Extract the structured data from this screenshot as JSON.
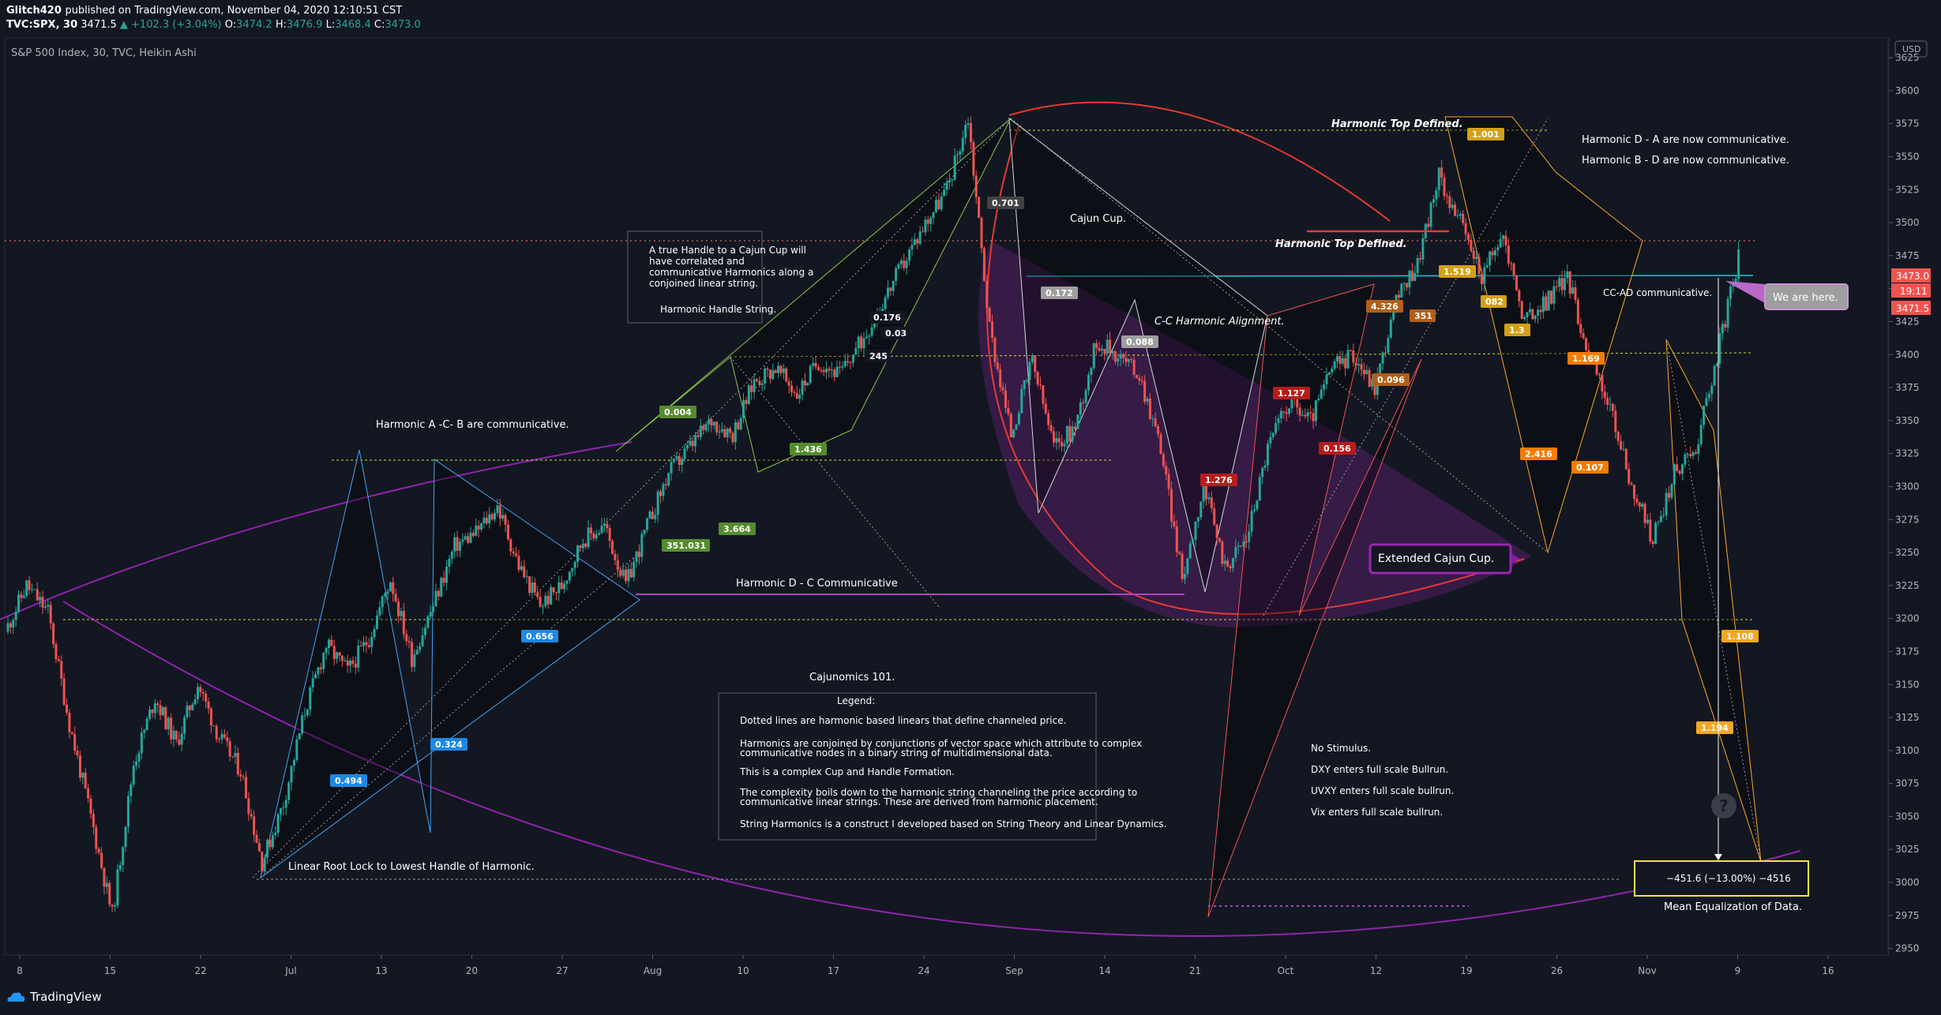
{
  "header": {
    "author": "Glitch420",
    "published": "published on TradingView.com, November 04, 2020 12:10:51 CST",
    "symbol": "TVC:SPX, 30",
    "last": "3471.5",
    "change": "▲ +102.3 (+3.04%)",
    "o_label": "O:",
    "o": "3474.2",
    "h_label": "H:",
    "h": "3476.9",
    "l_label": "L:",
    "l": "3468.4",
    "c_label": "C:",
    "c": "3473.0"
  },
  "chart_title": "S&P 500 Index, 30, TVC, Heikin Ashi",
  "currency": "USD",
  "price_tags": {
    "p1": "3473.0",
    "p2": "19:11",
    "p3": "3471.5"
  },
  "colors": {
    "bg": "#131722",
    "up": "#26a69a",
    "down": "#ef5350",
    "purple": "#9c27b0",
    "orange": "#f5a623",
    "blue": "#2962ff"
  },
  "annotations": {
    "handle_box": [
      "A true Handle to a Cajun Cup will",
      "have correlated and",
      "communicative Harmonics along a",
      "conjoined linear string."
    ],
    "handle_string": "Harmonic Handle String.",
    "harmonic_ac_b": "Harmonic A -C- B are communicative.",
    "harmonic_dc": "Harmonic D - C Communicative",
    "cajun_cup": "Cajun Cup.",
    "cc_alignment": "C-C Harmonic Alignment.",
    "top_defined_1": "Harmonic Top Defined.",
    "top_defined_2": "Harmonic Top Defined.",
    "da_comm": "Harmonic D - A are now communicative.",
    "bd_comm": "Harmonic B - D are now communicative.",
    "ccad": "CC-AD communicative.",
    "we_are_here": "We are here.",
    "extended_cup": "Extended Cajun Cup.",
    "linear_root": "Linear Root Lock to Lowest Handle of Harmonic.",
    "cajunomics": "Cajunomics 101.",
    "legend_title": "Legend:",
    "legend_lines": [
      "Dotted lines are harmonic based linears that define channeled price.",
      "Harmonics are conjoined by conjunctions of vector space which attribute to complex",
      "communicative nodes in a binary string of multidimensional data.",
      "This is a complex Cup and Handle Formation.",
      "The complexity boils down to the harmonic string channeling the price according to",
      "communicative linear strings. These are derived from harmonic placement.",
      "String Harmonics is a construct I developed based on String Theory and Linear Dynamics."
    ],
    "stimulus": [
      "No Stimulus.",
      "DXY enters full scale Bullrun.",
      "UVXY enters full scale bullrun.",
      "Vix enters full scale bullrun."
    ],
    "measure": "−451.6 (−13.00%) −4516",
    "mean_eq": "Mean Equalization of Data."
  },
  "badges": [
    "0.004",
    "1.436",
    "351.031",
    "3.664",
    "0.656",
    "0.324",
    "0.494",
    "0.701",
    "0.172",
    "0.176",
    "0.03",
    "245",
    "0.088",
    "1.127",
    "0.156",
    "1.276",
    "1.001",
    "1.519",
    "4.326",
    "0.096",
    "2.416",
    "0.107",
    "1.169",
    "1.108",
    "1.194",
    "1.3",
    "082",
    "351"
  ],
  "brand": "TradingView",
  "chart_data": {
    "type": "candlestick",
    "title": "S&P 500 Index, 30, TVC, Heikin Ashi",
    "x_ticks": [
      "8",
      "15",
      "22",
      "Jul",
      "13",
      "20",
      "27",
      "Aug",
      "10",
      "17",
      "24",
      "Sep",
      "14",
      "21",
      "Oct",
      "12",
      "19",
      "26",
      "Nov",
      "9",
      "16"
    ],
    "y_ticks": [
      2950,
      2975,
      3000,
      3025,
      3050,
      3075,
      3100,
      3125,
      3150,
      3175,
      3200,
      3225,
      3250,
      3275,
      3300,
      3325,
      3350,
      3375,
      3400,
      3425,
      3450,
      3475,
      3500,
      3525,
      3550,
      3575,
      3600,
      3625
    ],
    "ylim": [
      2945,
      3640
    ],
    "series": [
      {
        "name": "SPX close",
        "points": [
          [
            0,
            3190
          ],
          [
            1,
            3225
          ],
          [
            2,
            3205
          ],
          [
            3,
            3120
          ],
          [
            4,
            3050
          ],
          [
            5,
            2975
          ],
          [
            6,
            3090
          ],
          [
            7,
            3140
          ],
          [
            8,
            3105
          ],
          [
            9,
            3150
          ],
          [
            10,
            3110
          ],
          [
            11,
            3085
          ],
          [
            12,
            3015
          ],
          [
            13,
            3060
          ],
          [
            14,
            3130
          ],
          [
            15,
            3180
          ],
          [
            16,
            3160
          ],
          [
            17,
            3185
          ],
          [
            18,
            3230
          ],
          [
            19,
            3170
          ],
          [
            20,
            3210
          ],
          [
            21,
            3255
          ],
          [
            22,
            3265
          ],
          [
            23,
            3285
          ],
          [
            24,
            3240
          ],
          [
            25,
            3210
          ],
          [
            26,
            3225
          ],
          [
            27,
            3260
          ],
          [
            28,
            3270
          ],
          [
            29,
            3225
          ],
          [
            30,
            3270
          ],
          [
            31,
            3310
          ],
          [
            32,
            3330
          ],
          [
            33,
            3350
          ],
          [
            34,
            3340
          ],
          [
            35,
            3380
          ],
          [
            36,
            3390
          ],
          [
            37,
            3370
          ],
          [
            38,
            3395
          ],
          [
            39,
            3385
          ],
          [
            40,
            3410
          ],
          [
            41,
            3440
          ],
          [
            42,
            3470
          ],
          [
            43,
            3500
          ],
          [
            44,
            3525
          ],
          [
            45,
            3580
          ],
          [
            46,
            3420
          ],
          [
            47,
            3340
          ],
          [
            48,
            3395
          ],
          [
            49,
            3330
          ],
          [
            50,
            3345
          ],
          [
            51,
            3410
          ],
          [
            52,
            3400
          ],
          [
            53,
            3385
          ],
          [
            54,
            3330
          ],
          [
            55,
            3230
          ],
          [
            56,
            3300
          ],
          [
            57,
            3240
          ],
          [
            58,
            3260
          ],
          [
            59,
            3330
          ],
          [
            60,
            3365
          ],
          [
            61,
            3350
          ],
          [
            62,
            3390
          ],
          [
            63,
            3400
          ],
          [
            64,
            3375
          ],
          [
            65,
            3440
          ],
          [
            66,
            3470
          ],
          [
            67,
            3535
          ],
          [
            68,
            3500
          ],
          [
            69,
            3460
          ],
          [
            70,
            3490
          ],
          [
            71,
            3425
          ],
          [
            72,
            3440
          ],
          [
            73,
            3460
          ],
          [
            74,
            3400
          ],
          [
            75,
            3360
          ],
          [
            76,
            3300
          ],
          [
            77,
            3260
          ],
          [
            78,
            3310
          ],
          [
            79,
            3330
          ],
          [
            80,
            3400
          ],
          [
            81,
            3473
          ]
        ]
      }
    ]
  }
}
